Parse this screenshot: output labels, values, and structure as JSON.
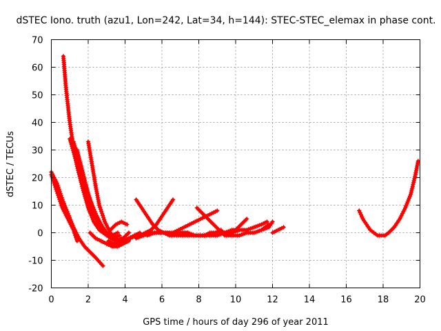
{
  "chart_data": {
    "type": "scatter",
    "title": "dSTEC Iono. truth (azu1, Lon=242, Lat=34, h=144): STEC-STEC_elemax in phase cont.",
    "xlabel": "GPS time / hours of day 296 of year 2011",
    "ylabel": "dSTEC  / TECUs",
    "xlim": [
      0,
      20
    ],
    "ylim": [
      -20,
      70
    ],
    "xticks": [
      0,
      2,
      4,
      6,
      8,
      10,
      12,
      14,
      16,
      18,
      20
    ],
    "yticks": [
      -20,
      -10,
      0,
      10,
      20,
      30,
      40,
      50,
      60,
      70
    ],
    "xtick_labels": [
      "0",
      "2",
      "4",
      "6",
      "8",
      "10",
      "12",
      "14",
      "16",
      "18",
      "20"
    ],
    "ytick_labels": [
      "-20",
      "-10",
      "0",
      "10",
      "20",
      "30",
      "40",
      "50",
      "60",
      "70"
    ],
    "grid": true,
    "marker": "plus",
    "color": "#ff0000",
    "series": [
      {
        "x": [
          0.0,
          0.3,
          0.6,
          0.9,
          1.2,
          1.5,
          1.8,
          2.1,
          2.4,
          2.8
        ],
        "y": [
          22,
          18,
          12,
          7,
          2,
          -2,
          -5,
          -7,
          -9,
          -12
        ]
      },
      {
        "x": [
          0.0,
          0.3,
          0.6,
          0.9,
          1.2,
          1.4
        ],
        "y": [
          21,
          15,
          9,
          5,
          1,
          -3
        ]
      },
      {
        "x": [
          0.65,
          0.8,
          1.0,
          1.2,
          1.4,
          1.7,
          2.0,
          2.3,
          2.6,
          3.0,
          3.3,
          3.6
        ],
        "y": [
          64,
          52,
          40,
          31,
          24,
          16,
          9,
          4,
          1,
          -1,
          -1,
          0
        ]
      },
      {
        "x": [
          1.0,
          1.3,
          1.6,
          1.9,
          2.2,
          2.5,
          2.8,
          3.1,
          3.4,
          3.7
        ],
        "y": [
          34,
          27,
          20,
          13,
          8,
          4,
          1,
          -1,
          -2,
          -1
        ]
      },
      {
        "x": [
          1.2,
          1.5,
          1.8,
          2.1,
          2.4,
          2.7,
          3.0,
          3.3,
          3.6,
          3.9,
          4.2
        ],
        "y": [
          33,
          26,
          19,
          12,
          7,
          3,
          0,
          -2,
          -3,
          -2,
          0
        ]
      },
      {
        "x": [
          1.4,
          1.7,
          2.0,
          2.3,
          2.6,
          2.9,
          3.2,
          3.5,
          3.8
        ],
        "y": [
          30,
          22,
          14,
          8,
          3,
          0,
          -2,
          -3,
          -2
        ]
      },
      {
        "x": [
          2.0,
          2.2,
          2.4,
          2.6,
          2.9,
          3.2,
          3.5,
          3.8
        ],
        "y": [
          33,
          25,
          17,
          10,
          4,
          0,
          -2,
          -3
        ]
      },
      {
        "x": [
          2.1,
          2.4,
          2.7,
          3.0,
          3.3,
          3.6,
          3.9,
          4.2
        ],
        "y": [
          0,
          -2,
          -3,
          -4,
          -5,
          -5,
          -4,
          -3
        ]
      },
      {
        "x": [
          2.7,
          3.0,
          3.3,
          3.6,
          3.9,
          4.2,
          4.5,
          4.8
        ],
        "y": [
          -3,
          -4,
          -4,
          -4,
          -3,
          -2,
          -1,
          0
        ]
      },
      {
        "x": [
          3.1,
          3.4,
          3.7,
          4.0,
          4.3,
          4.6
        ],
        "y": [
          -3,
          -4,
          -4,
          -3,
          -2,
          -1
        ]
      },
      {
        "x": [
          3.2,
          3.5,
          3.8,
          4.1
        ],
        "y": [
          1,
          3,
          4,
          3
        ]
      },
      {
        "x": [
          4.6,
          4.9,
          5.2,
          5.5,
          5.8,
          6.1,
          6.4,
          6.7
        ],
        "y": [
          12,
          9,
          6,
          3,
          1,
          0,
          -1,
          -1
        ]
      },
      {
        "x": [
          4.6,
          5.0,
          5.4,
          5.8,
          6.2,
          6.6,
          7.0,
          7.4
        ],
        "y": [
          -2,
          -1,
          0,
          0,
          0,
          0,
          0,
          0
        ]
      },
      {
        "x": [
          4.8,
          5.1,
          5.4,
          5.7,
          6.0,
          6.3,
          6.6
        ],
        "y": [
          -1,
          0,
          1,
          3,
          6,
          9,
          12
        ]
      },
      {
        "x": [
          5.2,
          5.6,
          6.0,
          6.4,
          6.8,
          7.2,
          7.6,
          8.0,
          8.4,
          8.8
        ],
        "y": [
          -1,
          0,
          0,
          0,
          -1,
          -1,
          -1,
          -1,
          -1,
          0
        ]
      },
      {
        "x": [
          6.6,
          6.9,
          7.2,
          7.5,
          7.8,
          8.1,
          8.4,
          8.7,
          9.0
        ],
        "y": [
          0,
          1,
          2,
          3,
          4,
          5,
          6,
          7,
          8
        ]
      },
      {
        "x": [
          7.0,
          7.4,
          7.8,
          8.2,
          8.6,
          9.0,
          9.4,
          9.8,
          10.2
        ],
        "y": [
          0,
          0,
          -1,
          -1,
          -1,
          -1,
          0,
          0,
          1
        ]
      },
      {
        "x": [
          7.9,
          8.2,
          8.5,
          8.8,
          9.1,
          9.4,
          9.7,
          10.0,
          10.3,
          10.6
        ],
        "y": [
          9,
          7,
          5,
          3,
          1,
          0,
          0,
          1,
          3,
          5
        ]
      },
      {
        "x": [
          8.3,
          8.6,
          8.9,
          9.2
        ],
        "y": [
          -1,
          0,
          0,
          1
        ]
      },
      {
        "x": [
          9.0,
          9.4,
          9.8,
          10.2,
          10.6,
          11.0,
          11.4,
          11.7
        ],
        "y": [
          0,
          0,
          1,
          1,
          1,
          2,
          3,
          4
        ]
      },
      {
        "x": [
          9.4,
          9.8,
          10.2,
          10.6,
          11.0,
          11.4,
          11.8,
          12.0
        ],
        "y": [
          -1,
          -1,
          -1,
          0,
          0,
          1,
          2,
          4
        ]
      },
      {
        "x": [
          11.4,
          11.6,
          11.8
        ],
        "y": [
          1,
          2,
          3
        ]
      },
      {
        "x": [
          12.0,
          12.3,
          12.6
        ],
        "y": [
          0,
          1,
          2
        ]
      },
      {
        "x": [
          16.7,
          16.9,
          17.1,
          17.3,
          17.5,
          17.7,
          17.9,
          18.1,
          18.3,
          18.6,
          18.9,
          19.2,
          19.5,
          19.75,
          19.9
        ],
        "y": [
          8,
          5,
          3,
          1,
          0,
          -1,
          -1,
          -1,
          0,
          2,
          5,
          9,
          14,
          21,
          26
        ]
      }
    ]
  }
}
